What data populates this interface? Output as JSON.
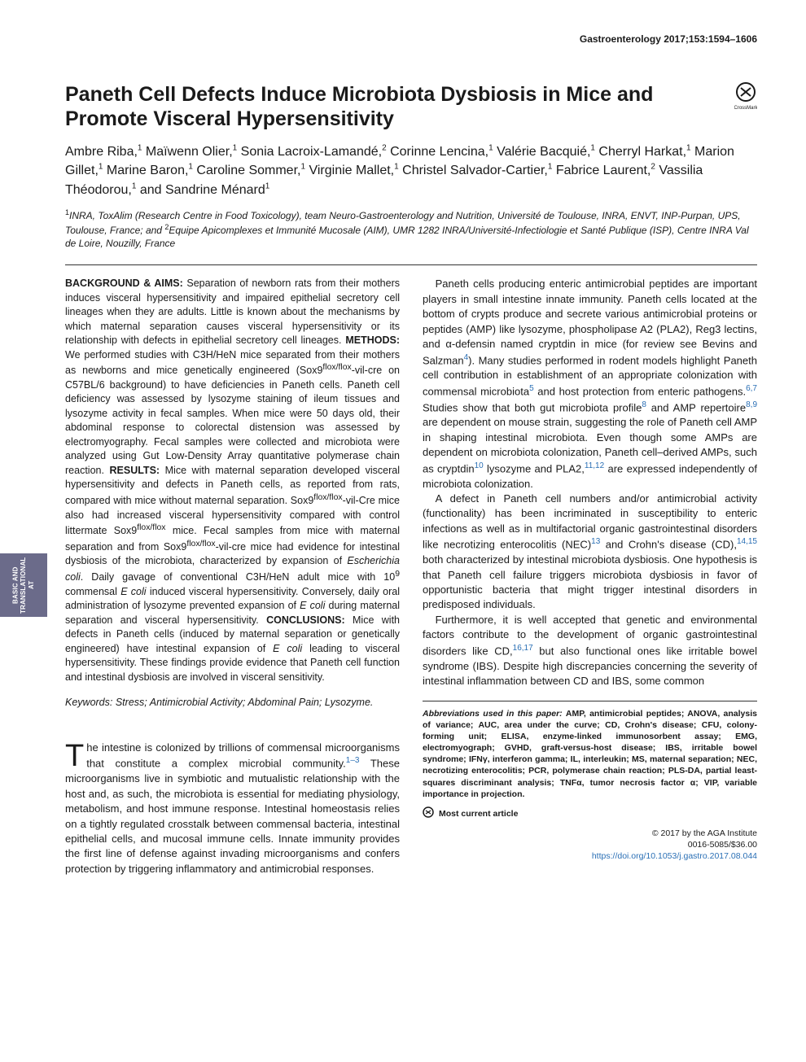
{
  "running_head": "Gastroenterology 2017;153:1594–1606",
  "title": "Paneth Cell Defects Induce Microbiota Dysbiosis in Mice and Promote Visceral Hypersensitivity",
  "authors_html": "Ambre Riba,<sup>1</sup> Maïwenn Olier,<sup>1</sup> Sonia Lacroix-Lamandé,<sup>2</sup> Corinne Lencina,<sup>1</sup> Valérie Bacquié,<sup>1</sup> Cherryl Harkat,<sup>1</sup> Marion Gillet,<sup>1</sup> Marine Baron,<sup>1</sup> Caroline Sommer,<sup>1</sup> Virginie Mallet,<sup>1</sup> Christel Salvador-Cartier,<sup>1</sup> Fabrice Laurent,<sup>2</sup> Vassilia Théodorou,<sup>1</sup> and Sandrine Ménard<sup>1</sup>",
  "affiliations_html": "<sup>1</sup>INRA, ToxAlim (Research Centre in Food Toxicology), team Neuro-Gastroenterology and Nutrition, Université de Toulouse, INRA, ENVT, INP-Purpan, UPS, Toulouse, France; and <sup>2</sup>Equipe Apicomplexes et Immunité Mucosale (AIM), UMR 1282 INRA/Université-Infectiologie et Santé Publique (ISP), Centre INRA Val de Loire, Nouzilly, France",
  "abstract": {
    "background_label": "BACKGROUND & AIMS:",
    "background": "Separation of newborn rats from their mothers induces visceral hypersensitivity and impaired epithelial secretory cell lineages when they are adults. Little is known about the mechanisms by which maternal separation causes visceral hypersensitivity or its relationship with defects in epithelial secretory cell lineages.",
    "methods_label": "METHODS:",
    "methods": "We performed studies with C3H/HeN mice separated from their mothers as newborns and mice genetically engineered (Sox9<sup>flox/flox</sup>-vil-cre on C57BL/6 background) to have deficiencies in Paneth cells. Paneth cell deficiency was assessed by lysozyme staining of ileum tissues and lysozyme activity in fecal samples. When mice were 50 days old, their abdominal response to colorectal distension was assessed by electromyography. Fecal samples were collected and microbiota were analyzed using Gut Low-Density Array quantitative polymerase chain reaction.",
    "results_label": "RESULTS:",
    "results": "Mice with maternal separation developed visceral hypersensitivity and defects in Paneth cells, as reported from rats, compared with mice without maternal separation. Sox9<sup>flox/flox</sup>-vil-Cre mice also had increased visceral hypersensitivity compared with control littermate Sox9<sup>flox/flox</sup> mice. Fecal samples from mice with maternal separation and from Sox9<sup>flox/flox</sup>-vil-cre mice had evidence for intestinal dysbiosis of the microbiota, characterized by expansion of <i>Escherichia coli</i>. Daily gavage of conventional C3H/HeN adult mice with 10<sup>9</sup> commensal <i>E coli</i> induced visceral hypersensitivity. Conversely, daily oral administration of lysozyme prevented expansion of <i>E coli</i> during maternal separation and visceral hypersensitivity.",
    "conclusions_label": "CONCLUSIONS:",
    "conclusions": "Mice with defects in Paneth cells (induced by maternal separation or genetically engineered) have intestinal expansion of <i>E coli</i> leading to visceral hypersensitivity. These findings provide evidence that Paneth cell function and intestinal dysbiosis are involved in visceral sensitivity."
  },
  "keywords_label": "Keywords:",
  "keywords": "Stress; Antimicrobial Activity; Abdominal Pain; Lysozyme.",
  "body": {
    "p1_first": "T",
    "p1_rest": "he intestine is colonized by trillions of commensal microorganisms that constitute a complex microbial community.",
    "p1_ref1": "1–3",
    "p1_cont": " These microorganisms live in symbiotic and mutualistic relationship with the host and, as such, the microbiota is essential for mediating physiology, metabolism, and host immune response. Intestinal homeostasis relies on a tightly regulated crosstalk between commensal bacteria, intestinal epithelial cells, and mucosal immune cells. Innate immunity provides the first line of defense against invading microorganisms and confers protection by triggering inflammatory and antimicrobial responses.",
    "p2a": "Paneth cells producing enteric antimicrobial peptides are important players in small intestine innate immunity. Paneth cells located at the bottom of crypts produce and secrete various antimicrobial proteins or peptides (AMP) like lysozyme, phospholipase A2 (PLA2), Reg3 lectins, and α-defensin named cryptdin in mice (for review see Bevins and Salzman",
    "p2_ref4": "4",
    "p2b": "). Many studies performed in rodent models highlight Paneth cell contribution in establishment of an appropriate colonization with commensal microbiota",
    "p2_ref5": "5",
    "p2c": " and host protection from enteric pathogens.",
    "p2_ref67": "6,7",
    "p2d": " Studies show that both gut microbiota profile",
    "p2_ref8": "8",
    "p2e": " and AMP repertoire",
    "p2_ref89": "8,9",
    "p2f": " are dependent on mouse strain, suggesting the role of Paneth cell AMP in shaping intestinal microbiota. Even though some AMPs are dependent on microbiota colonization, Paneth cell–derived AMPs, such as cryptdin",
    "p2_ref10": "10",
    "p2g": " lysozyme and PLA2,",
    "p2_ref1112": "11,12",
    "p2h": " are expressed independently of microbiota colonization.",
    "p3a": "A defect in Paneth cell numbers and/or antimicrobial activity (functionality) has been incriminated in susceptibility to enteric infections as well as in multifactorial organic gastrointestinal disorders like necrotizing enterocolitis (NEC)",
    "p3_ref13": "13",
    "p3b": " and Crohn's disease (CD),",
    "p3_ref1415": "14,15",
    "p3c": " both characterized by intestinal microbiota dysbiosis. One hypothesis is that Paneth cell failure triggers microbiota dysbiosis in favor of opportunistic bacteria that might trigger intestinal disorders in predisposed individuals.",
    "p4a": "Furthermore, it is well accepted that genetic and environmental factors contribute to the development of organic gastrointestinal disorders like CD,",
    "p4_ref1617": "16,17",
    "p4b": " but also functional ones like irritable bowel syndrome (IBS). Despite high discrepancies concerning the severity of intestinal inflammation between CD and IBS, some common"
  },
  "footer": {
    "abbrev_label": "Abbreviations used in this paper:",
    "abbrev": "AMP, antimicrobial peptides; ANOVA, analysis of variance; AUC, area under the curve; CD, Crohn's disease; CFU, colony-forming unit; ELISA, enzyme-linked immunosorbent assay; EMG, electromyograph; GVHD, graft-versus-host disease; IBS, irritable bowel syndrome; IFNγ, interferon gamma; IL, interleukin; MS, maternal separation; NEC, necrotizing enterocolitis; PCR, polymerase chain reaction; PLS-DA, partial least-squares discriminant analysis; TNFα, tumor necrosis factor α; VIP, variable importance in projection.",
    "most_current": "Most current article",
    "copyright1": "© 2017 by the AGA Institute",
    "copyright2": "0016-5085/$36.00",
    "doi": "https://doi.org/10.1053/j.gastro.2017.08.044"
  },
  "side_tab": "BASIC AND TRANSLATIONAL AT",
  "colors": {
    "link": "#2a6fb5",
    "side_tab_bg": "#6b6b8a",
    "text": "#1a1a1a"
  }
}
